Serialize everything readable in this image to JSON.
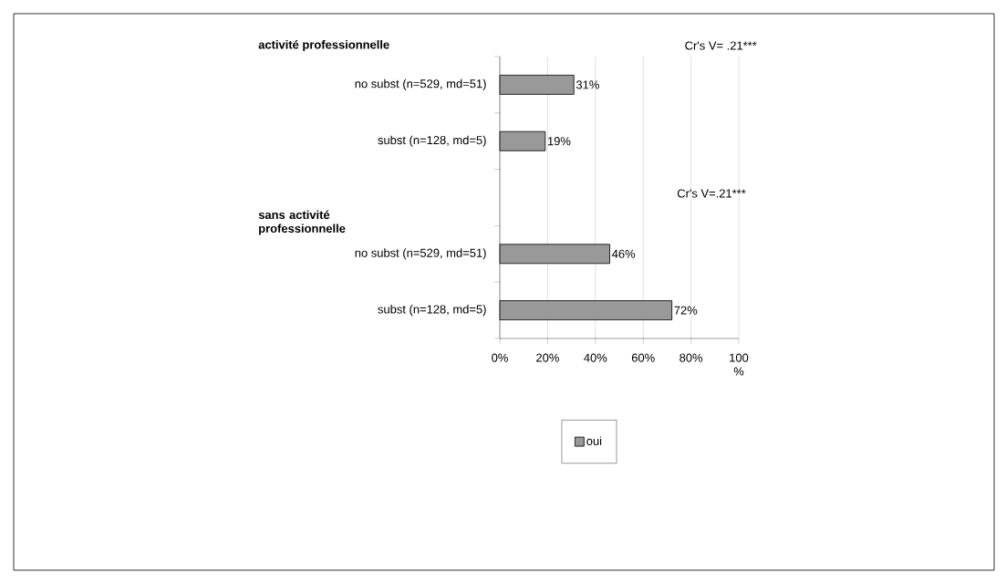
{
  "chart_data": {
    "type": "bar",
    "orientation": "horizontal",
    "categories": [
      "no subst (n=529, md=51)",
      "subst (n=128, md=5)",
      null,
      "no subst (n=529, md=51)",
      "subst (n=128, md=5)"
    ],
    "series": [
      {
        "name": "oui",
        "color": "#999999",
        "values": [
          31,
          19,
          null,
          46,
          72
        ],
        "value_labels": [
          "31%",
          "19%",
          null,
          "46%",
          "72%"
        ]
      }
    ],
    "xlim": [
      0,
      100
    ],
    "xticks": [
      {
        "value": 0,
        "label": "0%"
      },
      {
        "value": 20,
        "label": "20%"
      },
      {
        "value": 40,
        "label": "40%"
      },
      {
        "value": 60,
        "label": "60%"
      },
      {
        "value": 80,
        "label": "80%"
      },
      {
        "value": 100,
        "label": "100 %"
      }
    ],
    "grid": "x",
    "legend": "bottom",
    "annotations": [
      "activité professionnelle",
      "sans activité professionnelle",
      "Cr's V= .21***",
      "Cr's V=.21***"
    ]
  }
}
